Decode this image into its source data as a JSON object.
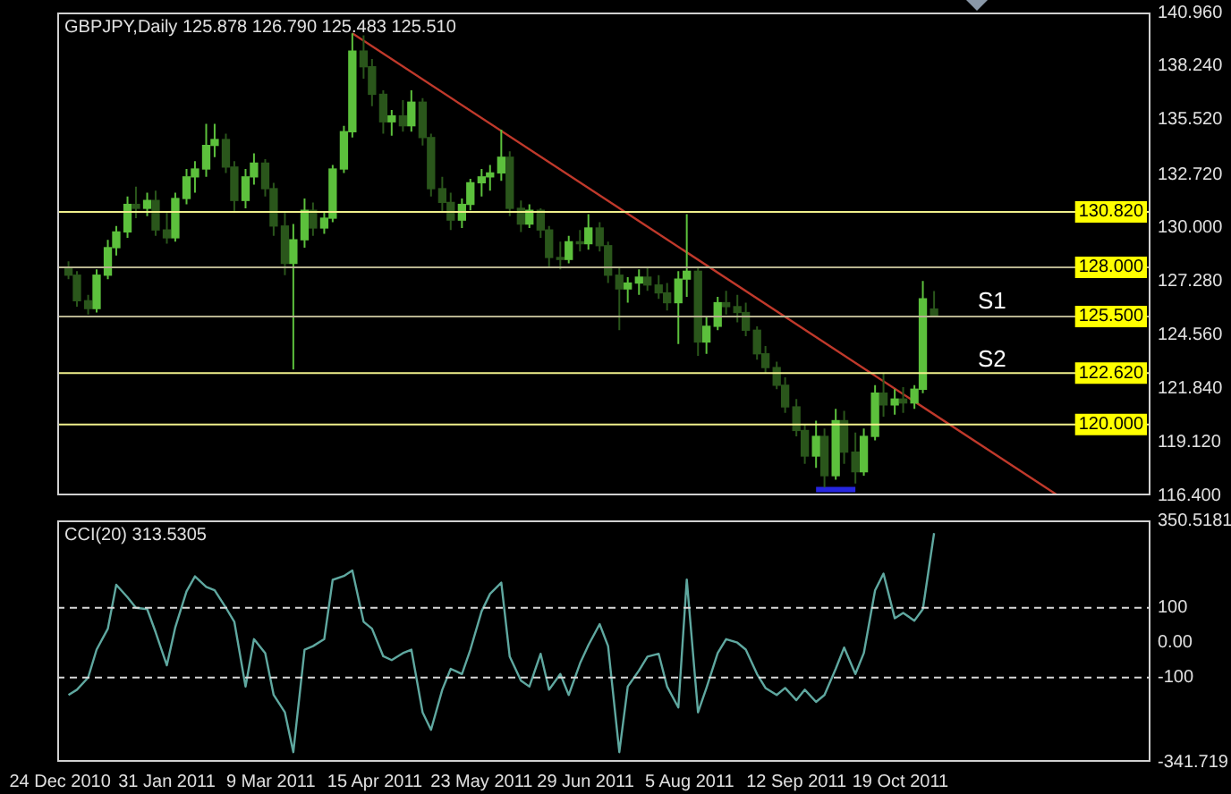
{
  "chart_data": [
    {
      "type": "candlestick",
      "title": "GBPJPY,Daily 125.878 126.790 125.483 125.510",
      "colors": [
        "#2a561b",
        "#2a561b",
        "#2a561b",
        "#5cc03c",
        "#5cc03c",
        "#5cc03c",
        "#5cc03c",
        "#2a561b",
        "#5cc03c",
        "#2a561b",
        "#2a561b",
        "#5cc03c",
        "#5cc03c",
        "#5cc03c",
        "#5cc03c",
        "#5cc03c",
        "#2a561b",
        "#2a561b",
        "#5cc03c",
        "#5cc03c",
        "#2a561b",
        "#2a561b",
        "#2a561b",
        "#5cc03c",
        "#5cc03c",
        "#2a561b",
        "#5cc03c",
        "#5cc03c",
        "#5cc03c",
        "#5cc03c",
        "#2a561b",
        "#2a561b",
        "#2a561b",
        "#5cc03c",
        "#2a561b",
        "#5cc03c",
        "#2a561b",
        "#2a561b",
        "#2a561b",
        "#2a561b",
        "#5cc03c",
        "#5cc03c",
        "#5cc03c",
        "#5cc03c",
        "#5cc03c",
        "#2a561b",
        "#2a561b",
        "#5cc03c",
        "#2a561b",
        "#2a561b",
        "#2a561b",
        "#5cc03c",
        "#2a561b",
        "#5cc03c",
        "#2a561b",
        "#2a561b",
        "#2a561b",
        "#5cc03c",
        "#5cc03c",
        "#2a561b",
        "#2a561b",
        "#2a561b",
        "#5cc03c",
        "#5cc03c",
        "#2a561b",
        "#5cc03c",
        "#5cc03c",
        "#2a561b",
        "#2a561b",
        "#2a561b",
        "#2a561b",
        "#2a561b",
        "#2a561b",
        "#2a561b",
        "#2a561b",
        "#2a561b",
        "#5cc03c",
        "#2a561b",
        "#5cc03c",
        "#2a561b",
        "#2a561b",
        "#5cc03c",
        "#5cc03c",
        "#2a561b",
        "#5cc03c",
        "#2a561b",
        "#5cc03c",
        "#5cc03c",
        "#2a561b"
      ],
      "x": [
        "2010-12-27",
        "2010-12-30",
        "2011-01-03",
        "2011-01-06",
        "2011-01-10",
        "2011-01-13",
        "2011-01-17",
        "2011-01-20",
        "2011-01-24",
        "2011-01-27",
        "2011-01-31",
        "2011-02-03",
        "2011-02-07",
        "2011-02-10",
        "2011-02-14",
        "2011-02-17",
        "2011-02-21",
        "2011-02-24",
        "2011-02-28",
        "2011-03-03",
        "2011-03-07",
        "2011-03-10",
        "2011-03-14",
        "2011-03-17",
        "2011-03-21",
        "2011-03-24",
        "2011-03-28",
        "2011-03-31",
        "2011-04-04",
        "2011-04-07",
        "2011-04-11",
        "2011-04-14",
        "2011-04-18",
        "2011-04-21",
        "2011-04-25",
        "2011-04-28",
        "2011-05-02",
        "2011-05-05",
        "2011-05-09",
        "2011-05-12",
        "2011-05-16",
        "2011-05-19",
        "2011-05-23",
        "2011-05-26",
        "2011-05-30",
        "2011-06-02",
        "2011-06-06",
        "2011-06-09",
        "2011-06-13",
        "2011-06-16",
        "2011-06-20",
        "2011-06-23",
        "2011-06-27",
        "2011-06-30",
        "2011-07-04",
        "2011-07-07",
        "2011-07-11",
        "2011-07-14",
        "2011-07-18",
        "2011-07-21",
        "2011-07-25",
        "2011-07-28",
        "2011-08-01",
        "2011-08-04",
        "2011-08-08",
        "2011-08-11",
        "2011-08-15",
        "2011-08-18",
        "2011-08-22",
        "2011-08-25",
        "2011-08-29",
        "2011-09-01",
        "2011-09-05",
        "2011-09-08",
        "2011-09-12",
        "2011-09-15",
        "2011-09-19",
        "2011-09-22",
        "2011-09-26",
        "2011-09-29",
        "2011-10-03",
        "2011-10-06",
        "2011-10-10",
        "2011-10-13",
        "2011-10-17",
        "2011-10-20",
        "2011-10-24",
        "2011-10-27",
        "2011-10-31"
      ],
      "ohlc": [
        [
          128.0,
          128.3,
          127.4,
          127.6
        ],
        [
          127.6,
          127.8,
          126.0,
          126.3
        ],
        [
          126.3,
          126.6,
          125.6,
          125.9
        ],
        [
          125.9,
          127.9,
          125.7,
          127.6
        ],
        [
          127.6,
          129.4,
          127.4,
          129.0
        ],
        [
          129.0,
          130.1,
          128.6,
          129.8
        ],
        [
          129.8,
          131.6,
          129.5,
          131.2
        ],
        [
          131.2,
          132.1,
          130.5,
          131.0
        ],
        [
          131.0,
          131.8,
          130.6,
          131.4
        ],
        [
          131.4,
          131.9,
          129.6,
          129.9
        ],
        [
          129.9,
          130.8,
          129.2,
          129.5
        ],
        [
          129.5,
          131.8,
          129.3,
          131.5
        ],
        [
          131.5,
          133.0,
          131.2,
          132.6
        ],
        [
          132.6,
          133.4,
          131.8,
          133.0
        ],
        [
          133.0,
          135.3,
          132.6,
          134.2
        ],
        [
          134.2,
          135.3,
          133.6,
          134.5
        ],
        [
          134.5,
          134.8,
          132.8,
          133.1
        ],
        [
          133.1,
          133.4,
          130.8,
          131.4
        ],
        [
          131.4,
          133.0,
          131.0,
          132.6
        ],
        [
          132.6,
          133.8,
          132.2,
          133.3
        ],
        [
          133.3,
          133.5,
          131.6,
          132.0
        ],
        [
          132.0,
          132.3,
          129.6,
          130.1
        ],
        [
          130.1,
          130.8,
          127.6,
          128.2
        ],
        [
          128.2,
          130.2,
          122.8,
          129.4
        ],
        [
          129.4,
          131.5,
          129.0,
          130.9
        ],
        [
          130.9,
          131.3,
          129.6,
          130.0
        ],
        [
          130.0,
          130.8,
          129.7,
          130.5
        ],
        [
          130.5,
          133.2,
          130.3,
          133.0
        ],
        [
          133.0,
          135.2,
          132.8,
          134.9
        ],
        [
          134.9,
          139.9,
          134.6,
          139.0
        ],
        [
          139.0,
          139.8,
          137.6,
          138.2
        ],
        [
          138.2,
          138.6,
          136.2,
          136.8
        ],
        [
          136.8,
          137.0,
          134.8,
          135.4
        ],
        [
          135.4,
          136.0,
          134.7,
          135.7
        ],
        [
          135.7,
          136.5,
          134.9,
          135.2
        ],
        [
          135.2,
          137.0,
          134.9,
          136.4
        ],
        [
          136.4,
          136.6,
          134.2,
          134.6
        ],
        [
          134.6,
          134.8,
          131.6,
          132.0
        ],
        [
          132.0,
          132.6,
          130.8,
          131.3
        ],
        [
          131.3,
          131.8,
          129.9,
          130.4
        ],
        [
          130.4,
          131.5,
          130.0,
          131.2
        ],
        [
          131.2,
          132.5,
          130.9,
          132.3
        ],
        [
          132.3,
          133.0,
          131.6,
          132.6
        ],
        [
          132.6,
          133.2,
          131.9,
          132.8
        ],
        [
          132.8,
          135.0,
          132.4,
          133.6
        ],
        [
          133.6,
          133.9,
          130.6,
          131.0
        ],
        [
          131.0,
          131.4,
          129.8,
          130.2
        ],
        [
          130.2,
          131.2,
          130.0,
          130.9
        ],
        [
          130.9,
          131.0,
          129.5,
          129.9
        ],
        [
          129.9,
          130.1,
          128.0,
          128.5
        ],
        [
          128.5,
          129.3,
          127.9,
          128.4
        ],
        [
          128.4,
          129.6,
          128.2,
          129.3
        ],
        [
          129.3,
          129.9,
          128.8,
          129.2
        ],
        [
          129.2,
          130.7,
          128.9,
          130.0
        ],
        [
          130.0,
          130.3,
          128.8,
          129.1
        ],
        [
          129.1,
          129.3,
          127.2,
          127.6
        ],
        [
          127.6,
          128.0,
          124.8,
          126.9
        ],
        [
          126.9,
          127.5,
          126.2,
          127.2
        ],
        [
          127.2,
          127.9,
          126.6,
          127.5
        ],
        [
          127.5,
          128.0,
          126.8,
          127.1
        ],
        [
          127.1,
          127.6,
          126.4,
          126.7
        ],
        [
          126.7,
          127.2,
          125.8,
          126.2
        ],
        [
          126.2,
          127.8,
          124.1,
          127.4
        ],
        [
          127.4,
          130.7,
          126.5,
          127.8
        ],
        [
          127.8,
          128.0,
          123.5,
          124.2
        ],
        [
          124.2,
          125.5,
          123.6,
          125.0
        ],
        [
          125.0,
          126.5,
          124.8,
          126.2
        ],
        [
          126.2,
          126.8,
          125.6,
          126.0
        ],
        [
          126.0,
          126.6,
          125.2,
          125.7
        ],
        [
          125.7,
          126.2,
          124.5,
          124.8
        ],
        [
          124.8,
          125.0,
          123.3,
          123.6
        ],
        [
          123.6,
          124.0,
          122.6,
          122.9
        ],
        [
          122.9,
          123.2,
          121.8,
          122.0
        ],
        [
          122.0,
          122.4,
          120.6,
          120.9
        ],
        [
          120.9,
          121.3,
          119.4,
          119.7
        ],
        [
          119.7,
          120.0,
          118.0,
          118.4
        ],
        [
          118.4,
          120.2,
          117.8,
          119.4
        ],
        [
          119.4,
          119.8,
          116.8,
          117.4
        ],
        [
          117.4,
          120.8,
          117.2,
          120.2
        ],
        [
          120.2,
          120.7,
          118.0,
          118.6
        ],
        [
          118.6,
          119.6,
          117.0,
          117.6
        ],
        [
          117.6,
          119.8,
          117.4,
          119.4
        ],
        [
          119.4,
          122.0,
          119.2,
          121.6
        ],
        [
          121.6,
          122.6,
          120.4,
          121.0
        ],
        [
          121.0,
          121.8,
          120.5,
          121.3
        ],
        [
          121.3,
          121.9,
          120.6,
          121.1
        ],
        [
          121.1,
          122.0,
          120.8,
          121.8
        ],
        [
          121.8,
          127.3,
          121.6,
          126.4
        ],
        [
          125.878,
          126.79,
          125.483,
          125.51
        ]
      ],
      "series": [
        {
          "type": "line",
          "x": [
            "2011-04-07",
            "2011-12-14"
          ],
          "values": [
            139.9,
            116.4
          ],
          "color": "#c0392b"
        },
        {
          "type": "line",
          "x": [
            "2011-09-19",
            "2011-10-03"
          ],
          "values": [
            116.7,
            116.7
          ],
          "color": "#2626e0"
        }
      ],
      "xlim": [
        "2010-12-23",
        "2012-01-16"
      ],
      "ylim": [
        116.4,
        140.96
      ],
      "yticks": [
        {
          "value": 140.96,
          "label": "140.960"
        },
        {
          "value": 138.24,
          "label": "138.240"
        },
        {
          "value": 135.52,
          "label": "135.520"
        },
        {
          "value": 132.72,
          "label": "132.720"
        },
        {
          "value": 130,
          "label": "130.000"
        },
        {
          "value": 127.28,
          "label": "127.280"
        },
        {
          "value": 124.56,
          "label": "124.560"
        },
        {
          "value": 121.84,
          "label": "121.840"
        },
        {
          "value": 119.12,
          "label": "119.120"
        },
        {
          "value": 116.4,
          "label": "116.400"
        }
      ],
      "ref_lines": [
        {
          "axis": "y",
          "value": 130.82,
          "label": "130.820",
          "color": "#f0f08c"
        },
        {
          "axis": "y",
          "value": 128,
          "label": "128.000",
          "color": "#b8b490"
        },
        {
          "axis": "y",
          "value": 125.5,
          "label": "125.500",
          "color": "#b8b490"
        },
        {
          "axis": "y",
          "value": 122.62,
          "label": "122.620",
          "color": "#f0f08c"
        },
        {
          "axis": "y",
          "value": 120,
          "label": "120.000",
          "color": "#f0f08c"
        }
      ],
      "annotations": [
        "S1",
        "S2"
      ],
      "tick_labels": "y",
      "grid": false,
      "legend": false
    },
    {
      "type": "line",
      "title": "CCI(20) 313.5305",
      "marker": "none",
      "x": [
        "2010-12-27",
        "2010-12-30",
        "2011-01-03",
        "2011-01-06",
        "2011-01-10",
        "2011-01-13",
        "2011-01-17",
        "2011-01-20",
        "2011-01-24",
        "2011-01-27",
        "2011-01-31",
        "2011-02-03",
        "2011-02-07",
        "2011-02-10",
        "2011-02-14",
        "2011-02-17",
        "2011-02-21",
        "2011-02-24",
        "2011-02-28",
        "2011-03-03",
        "2011-03-07",
        "2011-03-10",
        "2011-03-14",
        "2011-03-17",
        "2011-03-21",
        "2011-03-24",
        "2011-03-28",
        "2011-03-31",
        "2011-04-04",
        "2011-04-07",
        "2011-04-11",
        "2011-04-14",
        "2011-04-18",
        "2011-04-21",
        "2011-04-25",
        "2011-04-28",
        "2011-05-02",
        "2011-05-05",
        "2011-05-09",
        "2011-05-12",
        "2011-05-16",
        "2011-05-19",
        "2011-05-23",
        "2011-05-26",
        "2011-05-30",
        "2011-06-02",
        "2011-06-06",
        "2011-06-09",
        "2011-06-13",
        "2011-06-16",
        "2011-06-20",
        "2011-06-23",
        "2011-06-27",
        "2011-06-30",
        "2011-07-04",
        "2011-07-07",
        "2011-07-11",
        "2011-07-14",
        "2011-07-18",
        "2011-07-21",
        "2011-07-25",
        "2011-07-28",
        "2011-08-01",
        "2011-08-04",
        "2011-08-08",
        "2011-08-11",
        "2011-08-15",
        "2011-08-18",
        "2011-08-22",
        "2011-08-25",
        "2011-08-29",
        "2011-09-01",
        "2011-09-05",
        "2011-09-08",
        "2011-09-12",
        "2011-09-15",
        "2011-09-19",
        "2011-09-22",
        "2011-09-26",
        "2011-09-29",
        "2011-10-03",
        "2011-10-06",
        "2011-10-10",
        "2011-10-13",
        "2011-10-17",
        "2011-10-20",
        "2011-10-24",
        "2011-10-27",
        "2011-10-31"
      ],
      "series": [
        {
          "color": "#5fa8a0",
          "values": [
            -150,
            -135,
            -100,
            -20,
            40,
            166,
            130,
            100,
            96,
            30,
            -65,
            44,
            147,
            190,
            160,
            150,
            100,
            60,
            -126,
            10,
            -30,
            -150,
            -200,
            -314,
            -20,
            -10,
            10,
            180,
            191,
            207,
            60,
            40,
            -39,
            -50,
            -30,
            -20,
            -200,
            -250,
            -135,
            -75,
            -90,
            -20,
            90,
            140,
            172,
            -40,
            -109,
            -126,
            -32,
            -135,
            -90,
            -150,
            -60,
            -7,
            53,
            -10,
            -314,
            -126,
            -80,
            -40,
            -32,
            -126,
            -186,
            181,
            -200,
            -130,
            -30,
            10,
            0,
            -20,
            -90,
            -130,
            -150,
            -130,
            -165,
            -135,
            -170,
            -150,
            -75,
            -14,
            -90,
            -30,
            150,
            198,
            70,
            85,
            63,
            96,
            314
          ]
        }
      ],
      "xlim": [
        "2010-12-23",
        "2012-01-16"
      ],
      "xticks": [
        {
          "value": "2010-12-24",
          "label": "24 Dec 2010"
        },
        {
          "value": "2011-01-31",
          "label": "31 Jan 2011"
        },
        {
          "value": "2011-03-09",
          "label": "9 Mar 2011"
        },
        {
          "value": "2011-04-15",
          "label": "15 Apr 2011"
        },
        {
          "value": "2011-05-23",
          "label": "23 May 2011"
        },
        {
          "value": "2011-06-29",
          "label": "29 Jun 2011"
        },
        {
          "value": "2011-08-05",
          "label": "5 Aug 2011"
        },
        {
          "value": "2011-09-12",
          "label": "12 Sep 2011"
        },
        {
          "value": "2011-10-19",
          "label": "19 Oct 2011"
        }
      ],
      "ylim": [
        -341.719,
        350.5181
      ],
      "yticks": [
        350.5181,
        100,
        {
          "value": 0,
          "label": "0.00"
        },
        -100,
        -341.719
      ],
      "ref_lines": [
        {
          "axis": "y",
          "value": 100,
          "color": "#d8d8d8",
          "line_style": "dashed"
        },
        {
          "axis": "y",
          "value": -100,
          "color": "#d8d8d8",
          "line_style": "dashed"
        }
      ],
      "grid": false,
      "legend": false
    }
  ]
}
